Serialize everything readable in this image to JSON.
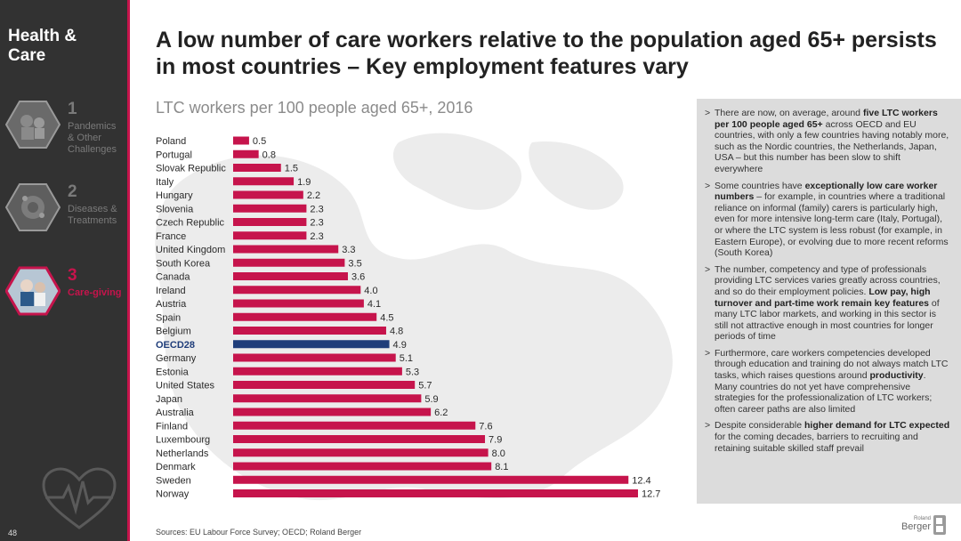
{
  "sidebar": {
    "title": "Health & Care",
    "items": [
      {
        "num": "1",
        "label": "Pandemics & Other Challenges"
      },
      {
        "num": "2",
        "label": "Diseases & Treatments"
      },
      {
        "num": "3",
        "label": "Care-giving"
      }
    ],
    "page_number": "48"
  },
  "title": "A low number of care workers relative to the population aged 65+ persists in most countries – Key employment features vary",
  "chart_data": {
    "type": "bar",
    "orientation": "horizontal",
    "title": "LTC workers per 100 people aged 65+, 2016",
    "categories": [
      "Poland",
      "Portugal",
      "Slovak Republic",
      "Italy",
      "Hungary",
      "Slovenia",
      "Czech Republic",
      "France",
      "United Kingdom",
      "South Korea",
      "Canada",
      "Ireland",
      "Austria",
      "Spain",
      "Belgium",
      "OECD28",
      "Germany",
      "Estonia",
      "United States",
      "Japan",
      "Australia",
      "Finland",
      "Luxembourg",
      "Netherlands",
      "Denmark",
      "Sweden",
      "Norway"
    ],
    "values": [
      0.5,
      0.8,
      1.5,
      1.9,
      2.2,
      2.3,
      2.3,
      2.3,
      3.3,
      3.5,
      3.6,
      4.0,
      4.1,
      4.5,
      4.8,
      4.9,
      5.1,
      5.3,
      5.7,
      5.9,
      6.2,
      7.6,
      7.9,
      8.0,
      8.1,
      12.4,
      12.7
    ],
    "value_labels": [
      "0.5",
      "0.8",
      "1.5",
      "1.9",
      "2.2",
      "2.3",
      "2.3",
      "2.3",
      "3.3",
      "3.5",
      "3.6",
      "4.0",
      "4.1",
      "4.5",
      "4.8",
      "4.9",
      "5.1",
      "5.3",
      "5.7",
      "5.9",
      "6.2",
      "7.6",
      "7.9",
      "8.0",
      "8.1",
      "12.4",
      "12.7"
    ],
    "highlight": "OECD28",
    "colors": {
      "bar": "#c6144c",
      "highlight": "#1f3d7a"
    },
    "xlim": [
      0,
      12.7
    ]
  },
  "panel": {
    "bullets": [
      [
        {
          "t": "There are now, on average, around "
        },
        {
          "t": "five LTC workers per 100 people aged 65+",
          "b": true
        },
        {
          "t": " across OECD and EU countries, with only a few countries having notably more, such as the Nordic countries, the Netherlands, Japan, USA – but this number has been slow to shift everywhere"
        }
      ],
      [
        {
          "t": "Some countries have "
        },
        {
          "t": "exceptionally low care worker numbers",
          "b": true
        },
        {
          "t": " – for example, in countries where a traditional reliance on informal (family) carers is particularly high, even for more intensive long-term care (Italy, Portugal), or where the LTC system is less robust (for example, in Eastern Europe), or evolving due to more recent reforms (South Korea)"
        }
      ],
      [
        {
          "t": "The number, competency and type of professionals providing LTC services varies greatly across countries, and so do their employment policies. "
        },
        {
          "t": "Low pay, high turnover and part-time work remain key features",
          "b": true
        },
        {
          "t": " of many LTC labor markets, and working in this sector is still not attractive enough in most countries for longer periods of time"
        }
      ],
      [
        {
          "t": "Furthermore, care workers competencies developed through education and training do not always match LTC tasks, which raises questions around "
        },
        {
          "t": "productivity",
          "b": true
        },
        {
          "t": ". Many countries do not yet have comprehensive strategies for the professionalization of LTC workers; often career paths are also limited"
        }
      ],
      [
        {
          "t": "Despite considerable "
        },
        {
          "t": "higher demand for LTC expected",
          "b": true
        },
        {
          "t": " for the coming decades, barriers to recruiting and retaining suitable skilled staff prevail"
        }
      ]
    ]
  },
  "sources": "Sources: EU Labour Force Survey; OECD; Roland Berger",
  "logo": {
    "line1": "Roland",
    "line2": "Berger"
  }
}
